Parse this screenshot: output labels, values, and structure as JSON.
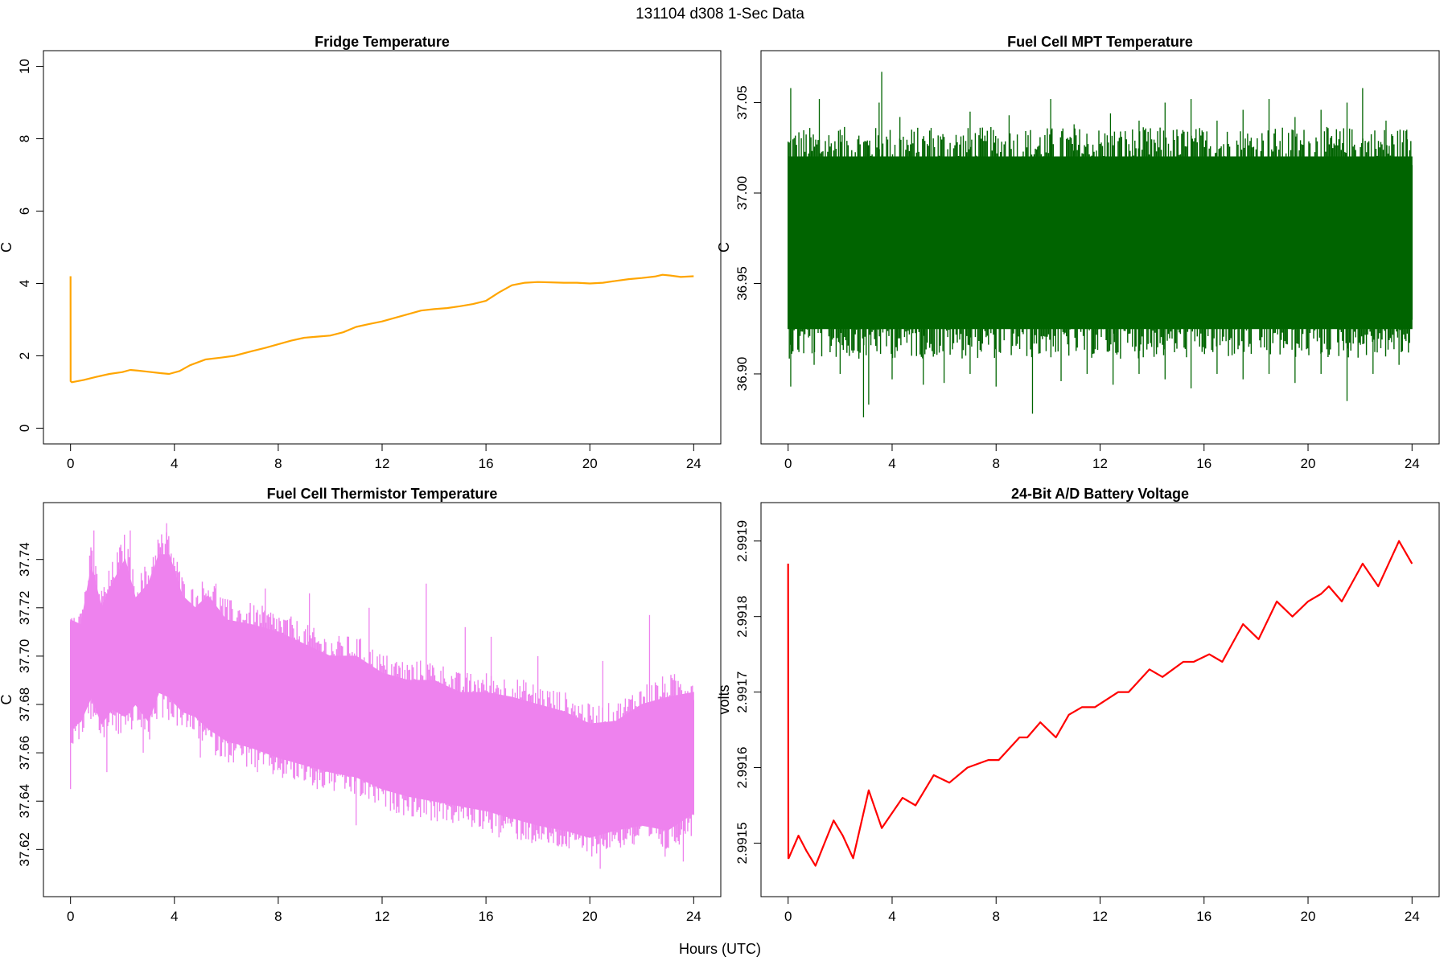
{
  "figure": {
    "title": "131104   d308   1-Sec Data",
    "xlabel": "Hours (UTC)"
  },
  "chart_data": [
    {
      "type": "line",
      "title": "Fridge Temperature",
      "xlabel": "",
      "ylabel": "C",
      "xlim": [
        0,
        24
      ],
      "ylim": [
        0,
        10
      ],
      "xticks": [
        0,
        4,
        8,
        12,
        16,
        20,
        24
      ],
      "yticks": [
        0,
        2,
        4,
        6,
        8,
        10
      ],
      "ytick_labels": [
        "0",
        "2",
        "4",
        "6",
        "8",
        "10"
      ],
      "y_tick_rotation": "vertical",
      "grid": false,
      "color": "#FFA500",
      "series": [
        {
          "style": "line",
          "x": [
            0,
            0.005,
            0.05,
            0.5,
            1,
            1.5,
            2,
            2.3,
            2.6,
            3,
            3.5,
            3.8,
            4.2,
            4.6,
            5.2,
            5.8,
            6.3,
            7,
            7.5,
            8,
            8.5,
            9,
            9.5,
            10,
            10.5,
            11,
            11.5,
            12,
            12.5,
            13,
            13.5,
            14,
            14.5,
            15,
            15.5,
            16,
            16.5,
            17,
            17.5,
            18,
            18.5,
            19,
            19.5,
            20,
            20.5,
            21,
            21.5,
            22,
            22.5,
            22.8,
            23.1,
            23.5,
            24
          ],
          "y": [
            4.2,
            1.3,
            1.27,
            1.33,
            1.42,
            1.5,
            1.55,
            1.61,
            1.59,
            1.56,
            1.52,
            1.5,
            1.58,
            1.74,
            1.9,
            1.95,
            2.0,
            2.13,
            2.22,
            2.32,
            2.42,
            2.5,
            2.53,
            2.56,
            2.65,
            2.8,
            2.88,
            2.95,
            3.05,
            3.15,
            3.25,
            3.29,
            3.32,
            3.37,
            3.43,
            3.52,
            3.75,
            3.95,
            4.02,
            4.04,
            4.03,
            4.02,
            4.02,
            4.0,
            4.02,
            4.07,
            4.12,
            4.15,
            4.19,
            4.24,
            4.22,
            4.18,
            4.2
          ]
        }
      ]
    },
    {
      "type": "line",
      "title": "Fuel Cell MPT Temperature",
      "xlabel": "",
      "ylabel": "C",
      "xlim": [
        0,
        24
      ],
      "ylim": [
        36.87,
        37.07
      ],
      "xticks": [
        0,
        4,
        8,
        12,
        16,
        20,
        24
      ],
      "yticks": [
        36.9,
        36.95,
        37.0,
        37.05
      ],
      "ytick_labels": [
        "36.90",
        "36.95",
        "37.00",
        "37.05"
      ],
      "y_tick_rotation": "vertical",
      "grid": false,
      "color": "#006400",
      "series": [
        {
          "style": "band",
          "x": [
            0,
            2,
            4,
            6,
            8,
            10,
            12,
            14,
            16,
            18,
            20,
            22,
            24
          ],
          "y_upper": [
            37.02,
            37.02,
            37.02,
            37.02,
            37.02,
            37.02,
            37.02,
            37.02,
            37.02,
            37.02,
            37.02,
            37.02,
            37.02
          ],
          "y_lower": [
            36.925,
            36.925,
            36.925,
            36.925,
            36.925,
            36.925,
            36.925,
            36.925,
            36.925,
            36.925,
            36.925,
            36.925,
            36.925
          ],
          "spikes_high": [
            [
              0.1,
              37.058
            ],
            [
              1.2,
              37.052
            ],
            [
              2.0,
              37.035
            ],
            [
              3.5,
              37.05
            ],
            [
              3.6,
              37.067
            ],
            [
              4.3,
              37.042
            ],
            [
              5.5,
              37.036
            ],
            [
              7.0,
              37.045
            ],
            [
              8.5,
              37.043
            ],
            [
              10.1,
              37.052
            ],
            [
              11.0,
              37.038
            ],
            [
              12.4,
              37.044
            ],
            [
              13.5,
              37.04
            ],
            [
              14.5,
              37.05
            ],
            [
              15.5,
              37.052
            ],
            [
              16.5,
              37.04
            ],
            [
              17.5,
              37.046
            ],
            [
              18.5,
              37.052
            ],
            [
              19.5,
              37.042
            ],
            [
              20.5,
              37.046
            ],
            [
              21.5,
              37.05
            ],
            [
              22.1,
              37.058
            ],
            [
              23.0,
              37.04
            ],
            [
              23.8,
              37.035
            ]
          ],
          "spikes_low": [
            [
              0.1,
              36.893
            ],
            [
              1.0,
              36.905
            ],
            [
              2.0,
              36.9
            ],
            [
              2.9,
              36.876
            ],
            [
              3.1,
              36.883
            ],
            [
              4.0,
              36.897
            ],
            [
              5.2,
              36.894
            ],
            [
              6.0,
              36.895
            ],
            [
              7.0,
              36.9
            ],
            [
              8.0,
              36.893
            ],
            [
              9.4,
              36.878
            ],
            [
              10.5,
              36.896
            ],
            [
              11.5,
              36.9
            ],
            [
              12.5,
              36.894
            ],
            [
              13.5,
              36.9
            ],
            [
              14.5,
              36.897
            ],
            [
              15.5,
              36.892
            ],
            [
              16.5,
              36.9
            ],
            [
              17.5,
              36.897
            ],
            [
              18.5,
              36.9
            ],
            [
              19.5,
              36.895
            ],
            [
              20.5,
              36.9
            ],
            [
              21.5,
              36.885
            ],
            [
              22.5,
              36.9
            ],
            [
              23.5,
              36.905
            ]
          ]
        }
      ]
    },
    {
      "type": "line",
      "title": "Fuel Cell Thermistor Temperature",
      "xlabel": "",
      "ylabel": "C",
      "xlim": [
        0,
        24
      ],
      "ylim": [
        37.607,
        37.757
      ],
      "xticks": [
        0,
        4,
        8,
        12,
        16,
        20,
        24
      ],
      "yticks": [
        37.62,
        37.64,
        37.66,
        37.68,
        37.7,
        37.72,
        37.74
      ],
      "ytick_labels": [
        "37.62",
        "37.64",
        "37.66",
        "37.68",
        "37.70",
        "37.72",
        "37.74"
      ],
      "y_tick_rotation": "vertical",
      "grid": false,
      "color": "#EE82EE",
      "series": [
        {
          "style": "band",
          "x": [
            0,
            0.4,
            0.8,
            1.2,
            1.6,
            2.1,
            2.5,
            3.0,
            3.4,
            3.8,
            4.3,
            4.8,
            5.3,
            6,
            7,
            8,
            9,
            10,
            11,
            12,
            13,
            14,
            15,
            16,
            17,
            18,
            19,
            20,
            21,
            22,
            23,
            24
          ],
          "y_upper": [
            37.715,
            37.713,
            37.737,
            37.72,
            37.73,
            37.74,
            37.724,
            37.73,
            37.742,
            37.742,
            37.725,
            37.72,
            37.725,
            37.715,
            37.713,
            37.71,
            37.705,
            37.7,
            37.7,
            37.693,
            37.69,
            37.69,
            37.685,
            37.685,
            37.683,
            37.68,
            37.677,
            37.672,
            37.673,
            37.68,
            37.683,
            37.685
          ],
          "y_lower": [
            37.67,
            37.673,
            37.683,
            37.672,
            37.678,
            37.675,
            37.68,
            37.673,
            37.685,
            37.683,
            37.677,
            37.675,
            37.67,
            37.665,
            37.662,
            37.658,
            37.655,
            37.652,
            37.65,
            37.645,
            37.642,
            37.64,
            37.638,
            37.636,
            37.633,
            37.63,
            37.628,
            37.625,
            37.628,
            37.63,
            37.628,
            37.635
          ],
          "spikes_high": [
            [
              0.9,
              37.752
            ],
            [
              2.3,
              37.752
            ],
            [
              3.7,
              37.755
            ],
            [
              3.3,
              37.738
            ],
            [
              5.6,
              37.73
            ],
            [
              7.5,
              37.728
            ],
            [
              9.2,
              37.726
            ],
            [
              11.5,
              37.72
            ],
            [
              13.7,
              37.73
            ],
            [
              15.2,
              37.712
            ],
            [
              16.2,
              37.708
            ],
            [
              18.0,
              37.7
            ],
            [
              20.5,
              37.698
            ],
            [
              22.3,
              37.717
            ]
          ],
          "spikes_low": [
            [
              0.0,
              37.645
            ],
            [
              1.4,
              37.652
            ],
            [
              2.8,
              37.66
            ],
            [
              5.0,
              37.658
            ],
            [
              7.2,
              37.652
            ],
            [
              9.5,
              37.645
            ],
            [
              11.0,
              37.63
            ],
            [
              13.0,
              37.636
            ],
            [
              15.5,
              37.632
            ],
            [
              16.5,
              37.625
            ],
            [
              18.4,
              37.623
            ],
            [
              20.4,
              37.612
            ],
            [
              21.7,
              37.622
            ],
            [
              22.9,
              37.617
            ],
            [
              23.6,
              37.615
            ]
          ]
        }
      ]
    },
    {
      "type": "line",
      "title": "24-Bit A/D Battery Voltage",
      "xlabel": "",
      "ylabel": "volts",
      "xlim": [
        0,
        24
      ],
      "ylim": [
        2.99145,
        2.99193
      ],
      "xticks": [
        0,
        4,
        8,
        12,
        16,
        20,
        24
      ],
      "yticks": [
        2.9915,
        2.9916,
        2.9917,
        2.9918,
        2.9919
      ],
      "ytick_labels": [
        "2.9915",
        "2.9916",
        "2.9917",
        "2.9918",
        "2.9919"
      ],
      "y_tick_rotation": "vertical",
      "grid": false,
      "color": "#FF0000",
      "series": [
        {
          "style": "line",
          "x": [
            0,
            0.01,
            0.02,
            0.4,
            0.7,
            1.05,
            1.4,
            1.75,
            2.1,
            2.5,
            3.1,
            3.6,
            4.4,
            4.9,
            5.6,
            6.2,
            6.9,
            7.7,
            8.1,
            8.9,
            9.2,
            9.7,
            10.3,
            10.8,
            11.3,
            11.8,
            12.7,
            13.1,
            13.9,
            14.4,
            15.2,
            15.6,
            16.2,
            16.7,
            17.5,
            18.1,
            18.8,
            19.4,
            20.0,
            20.5,
            20.8,
            21.3,
            22.1,
            22.7,
            23.5,
            24.0
          ],
          "y": [
            2.99187,
            2.99148,
            2.99148,
            2.99151,
            2.99149,
            2.99147,
            2.9915,
            2.99153,
            2.99151,
            2.99148,
            2.99157,
            2.99152,
            2.99156,
            2.99155,
            2.99159,
            2.99158,
            2.9916,
            2.99161,
            2.99161,
            2.99164,
            2.99164,
            2.99166,
            2.99164,
            2.99167,
            2.99168,
            2.99168,
            2.9917,
            2.9917,
            2.99173,
            2.99172,
            2.99174,
            2.99174,
            2.99175,
            2.99174,
            2.99179,
            2.99177,
            2.99182,
            2.9918,
            2.99182,
            2.99183,
            2.99184,
            2.99182,
            2.99187,
            2.99184,
            2.9919,
            2.99187
          ]
        }
      ]
    }
  ]
}
